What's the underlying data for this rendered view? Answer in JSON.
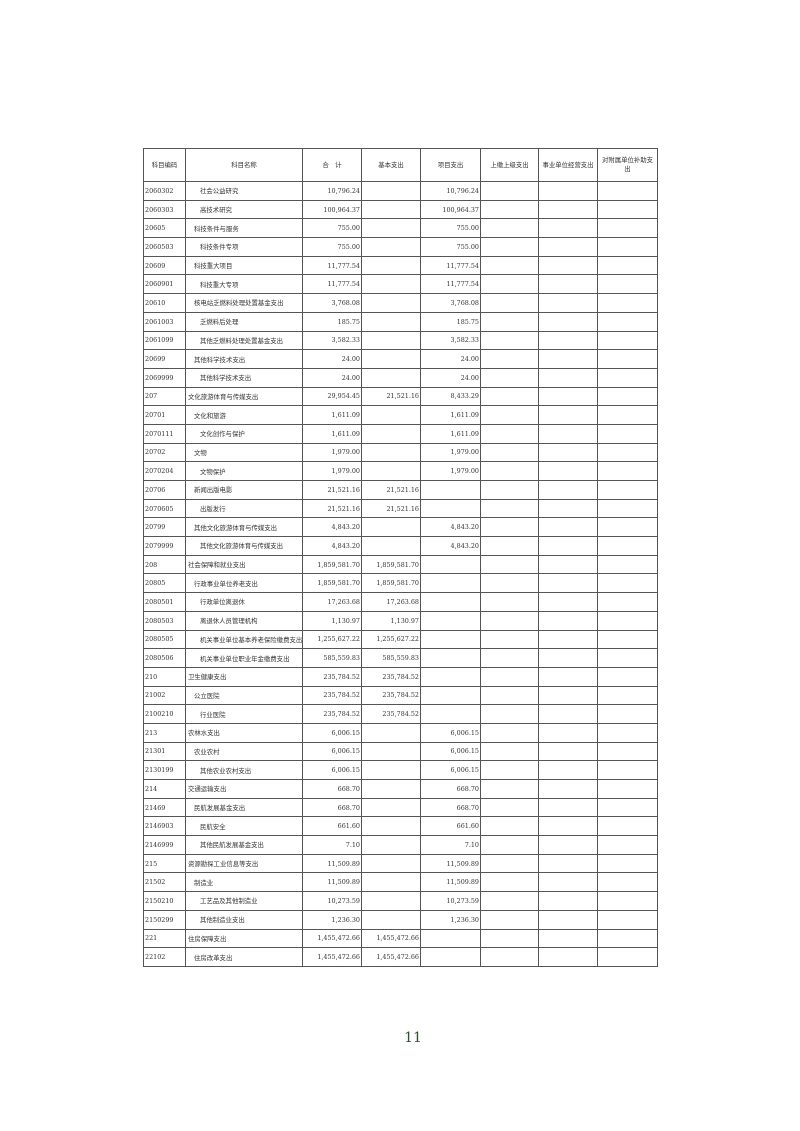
{
  "table": {
    "headers": [
      "科目编码",
      "科目名称",
      "合　计",
      "基本支出",
      "项目支出",
      "上缴上级支出",
      "事业单位经营支出",
      "对附属单位补助支出"
    ],
    "rows": [
      {
        "code": "2060302",
        "name": "社会公益研究",
        "level": 3,
        "total": "10,796.24",
        "basic": "",
        "project": "10,796.24"
      },
      {
        "code": "2060303",
        "name": "高技术研究",
        "level": 3,
        "total": "100,964.37",
        "basic": "",
        "project": "100,964.37"
      },
      {
        "code": "20605",
        "name": "科技条件与服务",
        "level": 2,
        "total": "755.00",
        "basic": "",
        "project": "755.00"
      },
      {
        "code": "2060503",
        "name": "科技条件专项",
        "level": 3,
        "total": "755.00",
        "basic": "",
        "project": "755.00"
      },
      {
        "code": "20609",
        "name": "科技重大项目",
        "level": 2,
        "total": "11,777.54",
        "basic": "",
        "project": "11,777.54"
      },
      {
        "code": "2060901",
        "name": "科技重大专项",
        "level": 3,
        "total": "11,777.54",
        "basic": "",
        "project": "11,777.54"
      },
      {
        "code": "20610",
        "name": "核电站乏燃料处理处置基金支出",
        "level": 2,
        "total": "3,768.08",
        "basic": "",
        "project": "3,768.08"
      },
      {
        "code": "2061003",
        "name": "乏燃料后处理",
        "level": 3,
        "total": "185.75",
        "basic": "",
        "project": "185.75"
      },
      {
        "code": "2061099",
        "name": "其他乏燃料处理处置基金支出",
        "level": 3,
        "total": "3,582.33",
        "basic": "",
        "project": "3,582.33"
      },
      {
        "code": "20699",
        "name": "其他科学技术支出",
        "level": 2,
        "total": "24.00",
        "basic": "",
        "project": "24.00"
      },
      {
        "code": "2069999",
        "name": "其他科学技术支出",
        "level": 3,
        "total": "24.00",
        "basic": "",
        "project": "24.00"
      },
      {
        "code": "207",
        "name": "文化旅游体育与传媒支出",
        "level": 1,
        "total": "29,954.45",
        "basic": "21,521.16",
        "project": "8,433.29"
      },
      {
        "code": "20701",
        "name": "文化和旅游",
        "level": 2,
        "total": "1,611.09",
        "basic": "",
        "project": "1,611.09"
      },
      {
        "code": "2070111",
        "name": "文化创作与保护",
        "level": 3,
        "total": "1,611.09",
        "basic": "",
        "project": "1,611.09"
      },
      {
        "code": "20702",
        "name": "文物",
        "level": 2,
        "total": "1,979.00",
        "basic": "",
        "project": "1,979.00"
      },
      {
        "code": "2070204",
        "name": "文物保护",
        "level": 3,
        "total": "1,979.00",
        "basic": "",
        "project": "1,979.00"
      },
      {
        "code": "20706",
        "name": "新闻出版电影",
        "level": 2,
        "total": "21,521.16",
        "basic": "21,521.16",
        "project": ""
      },
      {
        "code": "2070605",
        "name": "出版发行",
        "level": 3,
        "total": "21,521.16",
        "basic": "21,521.16",
        "project": ""
      },
      {
        "code": "20799",
        "name": "其他文化旅游体育与传媒支出",
        "level": 2,
        "total": "4,843.20",
        "basic": "",
        "project": "4,843.20"
      },
      {
        "code": "2079999",
        "name": "其他文化旅游体育与传媒支出",
        "level": 3,
        "total": "4,843.20",
        "basic": "",
        "project": "4,843.20"
      },
      {
        "code": "208",
        "name": "社会保障和就业支出",
        "level": 1,
        "total": "1,859,581.70",
        "basic": "1,859,581.70",
        "project": ""
      },
      {
        "code": "20805",
        "name": "行政事业单位养老支出",
        "level": 2,
        "total": "1,859,581.70",
        "basic": "1,859,581.70",
        "project": ""
      },
      {
        "code": "2080501",
        "name": "行政单位离退休",
        "level": 3,
        "total": "17,263.68",
        "basic": "17,263.68",
        "project": ""
      },
      {
        "code": "2080503",
        "name": "离退休人员管理机构",
        "level": 3,
        "total": "1,130.97",
        "basic": "1,130.97",
        "project": ""
      },
      {
        "code": "2080505",
        "name": "机关事业单位基本养老保险缴费支出",
        "level": 3,
        "total": "1,255,627.22",
        "basic": "1,255,627.22",
        "project": ""
      },
      {
        "code": "2080506",
        "name": "机关事业单位职业年金缴费支出",
        "level": 3,
        "total": "585,559.83",
        "basic": "585,559.83",
        "project": ""
      },
      {
        "code": "210",
        "name": "卫生健康支出",
        "level": 1,
        "total": "235,784.52",
        "basic": "235,784.52",
        "project": ""
      },
      {
        "code": "21002",
        "name": "公立医院",
        "level": 2,
        "total": "235,784.52",
        "basic": "235,784.52",
        "project": ""
      },
      {
        "code": "2100210",
        "name": "行业医院",
        "level": 3,
        "total": "235,784.52",
        "basic": "235,784.52",
        "project": ""
      },
      {
        "code": "213",
        "name": "农林水支出",
        "level": 1,
        "total": "6,006.15",
        "basic": "",
        "project": "6,006.15"
      },
      {
        "code": "21301",
        "name": "农业农村",
        "level": 2,
        "total": "6,006.15",
        "basic": "",
        "project": "6,006.15"
      },
      {
        "code": "2130199",
        "name": "其他农业农村支出",
        "level": 3,
        "total": "6,006.15",
        "basic": "",
        "project": "6,006.15"
      },
      {
        "code": "214",
        "name": "交通运输支出",
        "level": 1,
        "total": "668.70",
        "basic": "",
        "project": "668.70"
      },
      {
        "code": "21469",
        "name": "民航发展基金支出",
        "level": 2,
        "total": "668.70",
        "basic": "",
        "project": "668.70"
      },
      {
        "code": "2146903",
        "name": "民航安全",
        "level": 3,
        "total": "661.60",
        "basic": "",
        "project": "661.60"
      },
      {
        "code": "2146999",
        "name": "其他民航发展基金支出",
        "level": 3,
        "total": "7.10",
        "basic": "",
        "project": "7.10"
      },
      {
        "code": "215",
        "name": "资源勘探工业信息等支出",
        "level": 1,
        "total": "11,509.89",
        "basic": "",
        "project": "11,509.89"
      },
      {
        "code": "21502",
        "name": "制造业",
        "level": 2,
        "total": "11,509.89",
        "basic": "",
        "project": "11,509.89"
      },
      {
        "code": "2150210",
        "name": "工艺品及其他制造业",
        "level": 3,
        "total": "10,273.59",
        "basic": "",
        "project": "10,273.59"
      },
      {
        "code": "2150299",
        "name": "其他制造业支出",
        "level": 3,
        "total": "1,236.30",
        "basic": "",
        "project": "1,236.30"
      },
      {
        "code": "221",
        "name": "住房保障支出",
        "level": 1,
        "total": "1,455,472.66",
        "basic": "1,455,472.66",
        "project": ""
      },
      {
        "code": "22102",
        "name": "住房改革支出",
        "level": 2,
        "total": "1,455,472.66",
        "basic": "1,455,472.66",
        "project": ""
      }
    ]
  },
  "page_number": "11"
}
